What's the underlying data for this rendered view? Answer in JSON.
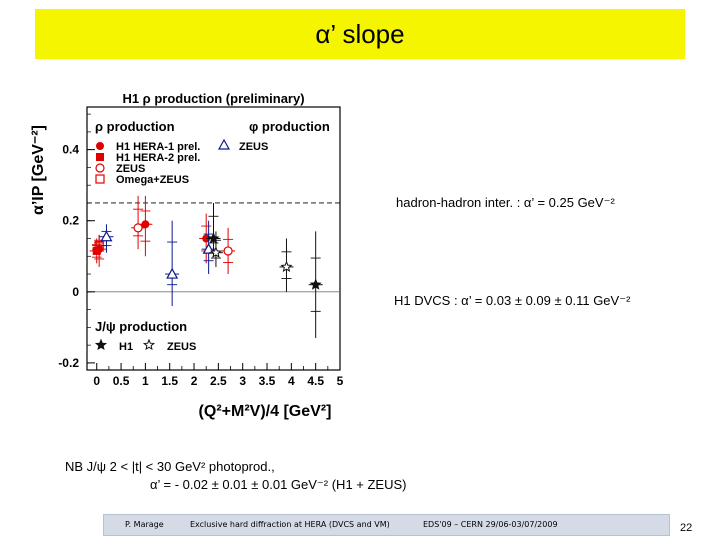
{
  "slide_title": "α’ slope",
  "annotations": {
    "hadron": "hadron-hadron inter. : α’ = 0.25 GeV⁻²",
    "dvcs": "H1 DVCS : α’ = 0.03 ± 0.09 ± 0.11 GeV⁻²",
    "nb_line1": "NB J/ψ 2 < |t| < 30 GeV² photoprod.,",
    "nb_line2": "α’ = - 0.02 ± 0.01 ± 0.01 GeV⁻² (H1 + ZEUS)"
  },
  "footer": {
    "author": "P. Marage",
    "talk": "Exclusive hard diffraction at HERA (DVCS and VM)",
    "conf": "EDS'09 – CERN 29/06-03/07/2009",
    "page": "22"
  },
  "colors": {
    "title_bg": "#f5f500",
    "red": "#e00000",
    "blue": "#0a1a8c",
    "footer_bg": "#d4dbe6"
  },
  "chart_data": {
    "type": "scatter",
    "title": "H1 ρ production (preliminary)",
    "xlabel": "(Q²+M²V)/4 [GeV²]",
    "ylabel": "α’IP [GeV⁻²]",
    "xlim": [
      -0.2,
      5
    ],
    "ylim": [
      -0.22,
      0.52
    ],
    "xticks": [
      "0",
      "0.5",
      "1",
      "1.5",
      "2",
      "2.5",
      "3",
      "3.5",
      "4",
      "4.5",
      "5"
    ],
    "yticks": [
      "-0.2",
      "0",
      "0.2",
      "0.4"
    ],
    "reference_lines": [
      0.25,
      0
    ],
    "legend_groups": {
      "rho": "ρ production",
      "phi": "φ production",
      "jpsi": "J/ψ production"
    },
    "legend_entries": {
      "h1_hera1": "H1 HERA-1 prel.",
      "h1_hera2": "H1 HERA-2 prel.",
      "zeus": "ZEUS",
      "omega_zeus": "Omega+ZEUS",
      "phi_zeus": "ZEUS",
      "jpsi_h1": "H1",
      "jpsi_zeus": "ZEUS"
    },
    "series": [
      {
        "name": "H1 HERA-1 prel.",
        "marker": "dot",
        "color": "#e00000",
        "points": [
          {
            "x": 0.05,
            "y": 0.12,
            "lo": 0.07,
            "hi": 0.16
          },
          {
            "x": 1.0,
            "y": 0.19,
            "lo": 0.1,
            "hi": 0.27
          },
          {
            "x": 2.25,
            "y": 0.15,
            "lo": 0.08,
            "hi": 0.22
          }
        ]
      },
      {
        "name": "H1 HERA-2 prel.",
        "marker": "square",
        "color": "#e00000",
        "points": [
          {
            "x": 0.0,
            "y": 0.115,
            "lo": 0.08,
            "hi": 0.15
          }
        ]
      },
      {
        "name": "ZEUS",
        "marker": "circle",
        "color": "#e00000",
        "points": [
          {
            "x": 0.85,
            "y": 0.18,
            "lo": 0.12,
            "hi": 0.27
          },
          {
            "x": 2.7,
            "y": 0.115,
            "lo": 0.05,
            "hi": 0.18
          }
        ]
      },
      {
        "name": "Omega+ZEUS",
        "marker": "open-square",
        "color": "#e00000",
        "points": [
          {
            "x": 0.05,
            "y": 0.13,
            "lo": 0.1,
            "hi": 0.16
          }
        ]
      },
      {
        "name": "ZEUS",
        "marker": "triangle",
        "color": "#0a1a8c",
        "points": [
          {
            "x": 0.2,
            "y": 0.155,
            "lo": 0.11,
            "hi": 0.19
          },
          {
            "x": 1.55,
            "y": 0.05,
            "lo": -0.04,
            "hi": 0.2
          },
          {
            "x": 2.3,
            "y": 0.12,
            "lo": 0.05,
            "hi": 0.2
          }
        ]
      },
      {
        "name": "H1",
        "marker": "star",
        "color": "#111111",
        "points": [
          {
            "x": 2.4,
            "y": 0.15,
            "lo": 0.1,
            "hi": 0.25
          },
          {
            "x": 4.5,
            "y": 0.02,
            "lo": -0.13,
            "hi": 0.17
          }
        ]
      },
      {
        "name": "ZEUS",
        "marker": "open-star",
        "color": "#111111",
        "points": [
          {
            "x": 2.45,
            "y": 0.11,
            "lo": 0.07,
            "hi": 0.17
          },
          {
            "x": 3.9,
            "y": 0.07,
            "lo": 0.0,
            "hi": 0.15
          }
        ]
      }
    ]
  }
}
